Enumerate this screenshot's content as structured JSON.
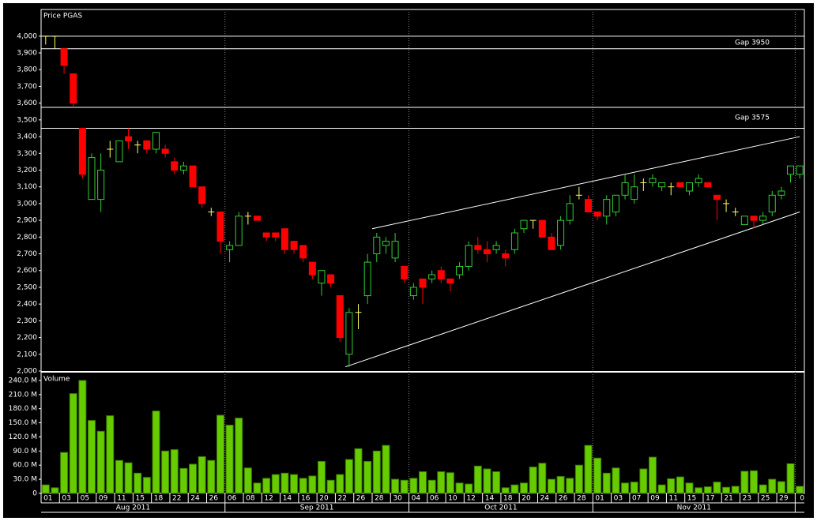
{
  "chart_data": {
    "type": "candlestick",
    "title": "Price PGAS",
    "categories": [
      "01",
      null,
      "03",
      null,
      "05",
      null,
      "09",
      null,
      "11",
      null,
      "15",
      null,
      "18",
      null,
      "22",
      null,
      "24",
      null,
      "26",
      null,
      "06",
      null,
      "08",
      null,
      "12",
      null,
      "14",
      null,
      "16",
      null,
      "20",
      null,
      "22",
      null,
      "26",
      null,
      "28",
      null,
      "30",
      null,
      "04",
      null,
      "06",
      null,
      "10",
      null,
      "12",
      null,
      "14",
      null,
      "18",
      null,
      "20",
      null,
      "24",
      null,
      "26",
      null,
      "28",
      null,
      "01",
      null,
      "03",
      null,
      "07",
      null,
      "09",
      null,
      "11",
      null,
      "15",
      null,
      "17",
      null,
      "21",
      null,
      "23",
      null,
      "25",
      null,
      "29",
      null,
      "0"
    ],
    "open": [
      4000,
      4000,
      3925,
      3775,
      3450,
      3025,
      3025,
      3325,
      3250,
      3400,
      3350,
      3375,
      3325,
      3325,
      3250,
      3200,
      3225,
      3100,
      2950,
      2950,
      2725,
      2750,
      2925,
      2925,
      2825,
      2825,
      2850,
      2775,
      2750,
      2650,
      2525,
      2575,
      2450,
      2100,
      2350,
      2450,
      2700,
      2750,
      2675,
      2625,
      2450,
      2550,
      2550,
      2600,
      2550,
      2575,
      2625,
      2750,
      2725,
      2725,
      2700,
      2725,
      2850,
      2900,
      2900,
      2800,
      2750,
      2900,
      3050,
      3025,
      2950,
      2925,
      2950,
      3050,
      3025,
      3125,
      3125,
      3100,
      3100,
      3125,
      3075,
      3125,
      3125,
      3050,
      3000,
      2950,
      2875,
      2925,
      2900,
      2950,
      3050,
      3175,
      3175
    ],
    "high": [
      4000,
      4000,
      3925,
      3775,
      3450,
      3300,
      3300,
      3375,
      3375,
      3450,
      3375,
      3375,
      3425,
      3350,
      3275,
      3250,
      3225,
      3100,
      2975,
      2950,
      2775,
      2950,
      2950,
      2925,
      2825,
      2825,
      2850,
      2775,
      2750,
      2650,
      2600,
      2575,
      2450,
      2375,
      2400,
      2700,
      2825,
      2800,
      2825,
      2625,
      2525,
      2550,
      2600,
      2625,
      2550,
      2650,
      2775,
      2800,
      2775,
      2775,
      2725,
      2850,
      2900,
      2900,
      2900,
      2825,
      2925,
      3050,
      3100,
      3050,
      2950,
      3050,
      3050,
      3175,
      3175,
      3150,
      3175,
      3125,
      3125,
      3125,
      3125,
      3175,
      3125,
      3050,
      3025,
      2975,
      2925,
      2925,
      2950,
      3075,
      3100,
      3225,
      3225
    ],
    "low": [
      3950,
      3925,
      3775,
      3575,
      3150,
      3025,
      2950,
      3275,
      3250,
      3325,
      3300,
      3300,
      3300,
      3275,
      3175,
      3175,
      3100,
      2975,
      2925,
      2700,
      2650,
      2750,
      2875,
      2900,
      2775,
      2775,
      2700,
      2700,
      2650,
      2550,
      2450,
      2500,
      2175,
      2025,
      2250,
      2400,
      2650,
      2700,
      2650,
      2525,
      2425,
      2400,
      2525,
      2525,
      2475,
      2550,
      2600,
      2700,
      2650,
      2700,
      2625,
      2700,
      2825,
      2850,
      2800,
      2725,
      2725,
      2875,
      3025,
      2950,
      2900,
      2875,
      2925,
      3025,
      3000,
      3075,
      3100,
      3075,
      3050,
      3100,
      3050,
      3100,
      3100,
      2900,
      2950,
      2925,
      2875,
      2850,
      2875,
      2925,
      3025,
      3125,
      3150
    ],
    "close": [
      4000,
      4000,
      3825,
      3600,
      3175,
      3275,
      3200,
      3325,
      3375,
      3375,
      3350,
      3325,
      3425,
      3300,
      3200,
      3225,
      3100,
      3000,
      2950,
      2775,
      2750,
      2925,
      2925,
      2900,
      2800,
      2800,
      2725,
      2725,
      2675,
      2575,
      2600,
      2525,
      2200,
      2350,
      2350,
      2650,
      2800,
      2775,
      2775,
      2550,
      2500,
      2500,
      2575,
      2550,
      2525,
      2625,
      2750,
      2725,
      2700,
      2750,
      2675,
      2825,
      2900,
      2900,
      2800,
      2725,
      2900,
      3000,
      3050,
      2950,
      2925,
      3025,
      3050,
      3125,
      3100,
      3125,
      3150,
      3125,
      3100,
      3100,
      3125,
      3150,
      3100,
      3025,
      3000,
      2950,
      2925,
      2900,
      2925,
      3050,
      3075,
      3225,
      3225
    ],
    "colors": {
      "up": "#33cc33",
      "down": "#ff0000",
      "flat": "#ffff66"
    },
    "ylim": [
      2000,
      4150
    ],
    "yticks": [
      {
        "value": 2000,
        "label": "2,000"
      },
      {
        "value": 2100,
        "label": "2,100"
      },
      {
        "value": 2200,
        "label": "2,200"
      },
      {
        "value": 2300,
        "label": "2,300"
      },
      {
        "value": 2400,
        "label": "2,400"
      },
      {
        "value": 2500,
        "label": "2,500"
      },
      {
        "value": 2600,
        "label": "2,600"
      },
      {
        "value": 2700,
        "label": "2,700"
      },
      {
        "value": 2800,
        "label": "2,800"
      },
      {
        "value": 2900,
        "label": "2,900"
      },
      {
        "value": 3000,
        "label": "3,000"
      },
      {
        "value": 3100,
        "label": "3,100"
      },
      {
        "value": 3200,
        "label": "3,200"
      },
      {
        "value": 3300,
        "label": "3,300"
      },
      {
        "value": 3400,
        "label": "3,400"
      },
      {
        "value": 3500,
        "label": "3,500"
      },
      {
        "value": 3600,
        "label": "3,600"
      },
      {
        "value": 3700,
        "label": "3,700"
      },
      {
        "value": 3800,
        "label": "3,800"
      },
      {
        "value": 3900,
        "label": "3,900"
      },
      {
        "value": 4000,
        "label": "4,000"
      }
    ],
    "gaps": [
      {
        "label": "Gap 3950",
        "top": 4000,
        "bottom": 3925
      },
      {
        "label": "Gap 3575",
        "top": 3575,
        "bottom": 3450
      }
    ],
    "trendlines": [
      {
        "x": [
          35.5,
          82
        ],
        "y": [
          2850,
          3400
        ]
      },
      {
        "x": [
          32.6,
          82
        ],
        "y": [
          2025,
          2950
        ]
      }
    ],
    "month_groups": [
      {
        "label": "Aug 2011",
        "count": 20
      },
      {
        "label": "Sep 2011",
        "count": 20
      },
      {
        "label": "Oct 2011",
        "count": 20
      },
      {
        "label": "Nov 2011",
        "count": 22
      }
    ],
    "volume": {
      "title": "Volume",
      "color": "#66cc00",
      "values": [
        18,
        12,
        87,
        212,
        240,
        155,
        132,
        165,
        70,
        65,
        43,
        34,
        175,
        90,
        93,
        53,
        62,
        78,
        70,
        166,
        145,
        160,
        54,
        22,
        32,
        40,
        43,
        40,
        32,
        37,
        68,
        28,
        40,
        72,
        95,
        68,
        90,
        102,
        30,
        28,
        32,
        46,
        28,
        46,
        44,
        22,
        20,
        58,
        52,
        46,
        12,
        18,
        22,
        56,
        64,
        30,
        36,
        32,
        60,
        102,
        75,
        43,
        54,
        22,
        24,
        52,
        77,
        18,
        31,
        35,
        22,
        12,
        14,
        24,
        13,
        15,
        47,
        48,
        18,
        30,
        25,
        63,
        15
      ],
      "ylim": [
        0,
        255
      ],
      "yticks": [
        0,
        {
          "value": 30,
          "label": "30.0 M"
        },
        {
          "value": 60,
          "label": "60.0 M"
        },
        {
          "value": 90,
          "label": "90.0 M"
        },
        {
          "value": 120,
          "label": "120.0 M"
        },
        {
          "value": 150,
          "label": "150.0 M"
        },
        {
          "value": 180,
          "label": "180.0 M"
        },
        {
          "value": 210,
          "label": "210.0 M"
        },
        {
          "value": 240,
          "label": "240.0 M"
        }
      ]
    }
  }
}
